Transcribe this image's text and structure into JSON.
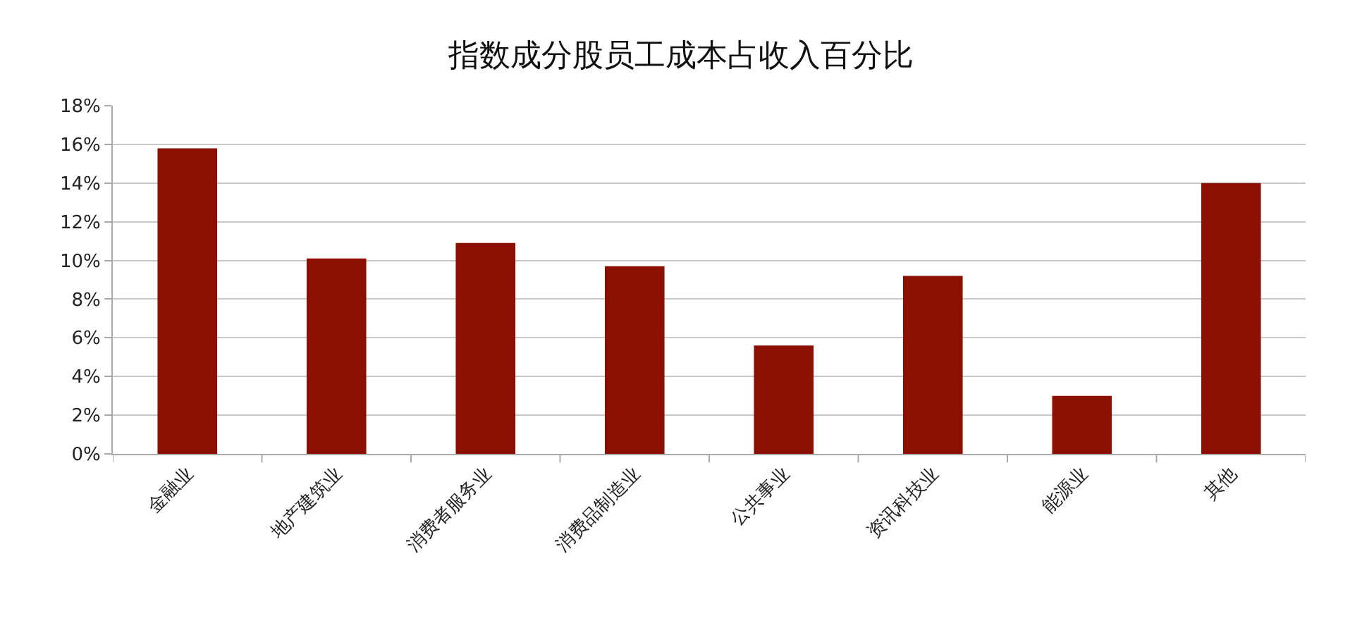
{
  "chart_data": {
    "type": "bar",
    "title": "指数成分股员工成本占收入百分比",
    "categories": [
      "金融业",
      "地产建筑业",
      "消费者服务业",
      "消费品制造业",
      "公共事业",
      "资讯科技业",
      "能源业",
      "其他"
    ],
    "values": [
      15.8,
      10.1,
      10.9,
      9.7,
      5.6,
      9.2,
      3.0,
      14.0
    ],
    "color": "#8b1002",
    "ylim": [
      0,
      18
    ],
    "yticks": [
      {
        "value": 0,
        "label": "0%"
      },
      {
        "value": 2,
        "label": "2%"
      },
      {
        "value": 4,
        "label": "4%"
      },
      {
        "value": 6,
        "label": "6%"
      },
      {
        "value": 8,
        "label": "8%"
      },
      {
        "value": 10,
        "label": "10%"
      },
      {
        "value": 12,
        "label": "12%"
      },
      {
        "value": 14,
        "label": "14%"
      },
      {
        "value": 16,
        "label": "16%"
      },
      {
        "value": 18,
        "label": "18%"
      }
    ],
    "grid": "y"
  }
}
